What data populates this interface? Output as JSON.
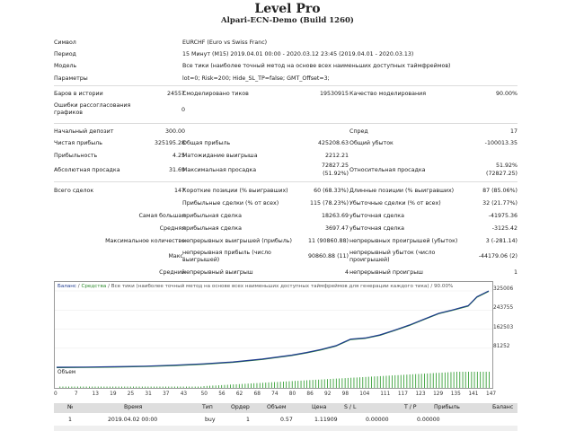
{
  "report": {
    "title": "Level Pro",
    "subtitle": "Alpari-ECN-Demo (Build 1260)"
  },
  "settings": [
    {
      "label": "Символ",
      "value": "EURCHF (Euro vs Swiss Franc)"
    },
    {
      "label": "Период",
      "value": "15 Минут (M15) 2019.04.01 00:00 - 2020.03.12 23:45 (2019.04.01 - 2020.03.13)"
    },
    {
      "label": "Модель",
      "value": "Все тики (наиболее точный метод на основе всех наименьших доступных таймфреймов)"
    },
    {
      "label": "Параметры",
      "value": "lot=0; Risk=200; Hide_SL_TP=false; GMT_Offset=3;"
    }
  ],
  "stats": {
    "bars_label": "Баров в истории",
    "bars_value": "24557",
    "ticks_label": "Смоделировано тиков",
    "ticks_value": "19530915",
    "quality_label": "Качество моделирования",
    "quality_value": "90.00%",
    "errors_label_1": "Ошибки рассогласования",
    "errors_label_2": "графиков",
    "errors_value": "0",
    "deposit_label": "Начальный депозит",
    "deposit_value": "300.00",
    "spread_label": "Спред",
    "spread_value": "17",
    "net_label": "Чистая прибыль",
    "net_value": "325195.28",
    "gross_profit_label": "Общая прибыль",
    "gross_profit_value": "425208.63",
    "gross_loss_label": "Общий убыток",
    "gross_loss_value": "-100013.35",
    "pf_label": "Прибыльность",
    "pf_value": "4.25",
    "expected_label": "Матожидание выигрыша",
    "expected_value": "2212.21",
    "abs_dd_label": "Абсолютная просадка",
    "abs_dd_value": "31.69",
    "max_dd_label": "Максимальная просадка",
    "max_dd_value_1": "72827.25",
    "max_dd_value_2": "(51.92%)",
    "rel_dd_label": "Относительная просадка",
    "rel_dd_value_1": "51.92%",
    "rel_dd_value_2": "(72827.25)",
    "total_label": "Всего сделок",
    "total_value": "147",
    "short_label": "Короткие позиции (% выигравших)",
    "short_value": "60 (68.33%)",
    "long_label": "Длинные позиции (% выигравших)",
    "long_value": "87 (85.06%)",
    "profit_trades_label": "Прибыльные сделки (% от всех)",
    "profit_trades_value": "115 (78.23%)",
    "loss_trades_label": "Убыточные сделки (% от всех)",
    "loss_trades_value": "32 (21.77%)",
    "largest_label": "Самая большая",
    "largest_profit_label": "прибыльная сделка",
    "largest_profit_value": "18263.69",
    "largest_loss_label": "убыточная сделка",
    "largest_loss_value": "-41975.36",
    "average_label": "Средняя",
    "avg_profit_label": "прибыльная сделка",
    "avg_profit_value": "3697.47",
    "avg_loss_label": "убыточная сделка",
    "avg_loss_value": "-3125.42",
    "maxcount_label": "Максимальное количество",
    "cons_wins_label": "непрерывных выигрышей (прибыль)",
    "cons_wins_value": "11 (90860.88)",
    "cons_losses_label": "непрерывных проигрышей (убыток)",
    "cons_losses_value": "3 (-281.14)",
    "max_label": "Макс.",
    "cons_profit_label_1": "непрерывная прибыль (число",
    "cons_profit_label_2": "выигрышей)",
    "cons_profit_value": "90860.88 (11)",
    "cons_loss_label_1": "непрерывный убыток (число",
    "cons_loss_label_2": "проигрышей)",
    "cons_loss_value": "-44179.06 (2)",
    "avg2_label": "Средний",
    "avg_wins_label": "непрерывный выигрыш",
    "avg_wins_value": "4",
    "avg_losses_label": "непрерывный проигрыш",
    "avg_losses_value": "1"
  },
  "chart": {
    "caption_balance": "Баланс",
    "caption_sep1": " / ",
    "caption_equity": "Средства",
    "caption_rest": " / Все тики (наиболее точный метод на основе всех наименьших доступных таймфреймов для генерации каждого тика) / 90.00%",
    "volume_label": "Объем",
    "balance_color": "#1e3a8f",
    "equity_color": "#2e8b2e"
  },
  "chart_data": {
    "type": "line",
    "ylim": [
      300,
      325006
    ],
    "y_ticks": [
      "325006",
      "243755",
      "162503",
      "81252"
    ],
    "x_ticks": [
      "0",
      "7",
      "13",
      "19",
      "25",
      "31",
      "37",
      "43",
      "50",
      "56",
      "62",
      "68",
      "74",
      "80",
      "86",
      "92",
      "98",
      "104",
      "111",
      "117",
      "123",
      "129",
      "135",
      "141",
      "147"
    ],
    "series": [
      {
        "name": "Баланс",
        "x": [
          0,
          10,
          20,
          30,
          40,
          50,
          60,
          70,
          80,
          85,
          90,
          95,
          100,
          105,
          110,
          115,
          120,
          125,
          130,
          135,
          140,
          143,
          147
        ],
        "y": [
          300,
          900,
          2500,
          5000,
          9000,
          15000,
          23000,
          35000,
          52000,
          63000,
          76000,
          92000,
          120000,
          125000,
          138000,
          158000,
          180000,
          205000,
          230000,
          245000,
          262000,
          300000,
          325006
        ]
      }
    ]
  },
  "trades": {
    "headers": [
      "№",
      "Время",
      "Тип",
      "Ордер",
      "Объем",
      "Цена",
      "S / L",
      "T / P",
      "Прибыль",
      "Баланс"
    ],
    "rows": [
      [
        "1",
        "2019.04.02 00:00",
        "buy",
        "1",
        "0.57",
        "1.11909",
        "0.00000",
        "0.00000",
        "",
        ""
      ]
    ]
  }
}
